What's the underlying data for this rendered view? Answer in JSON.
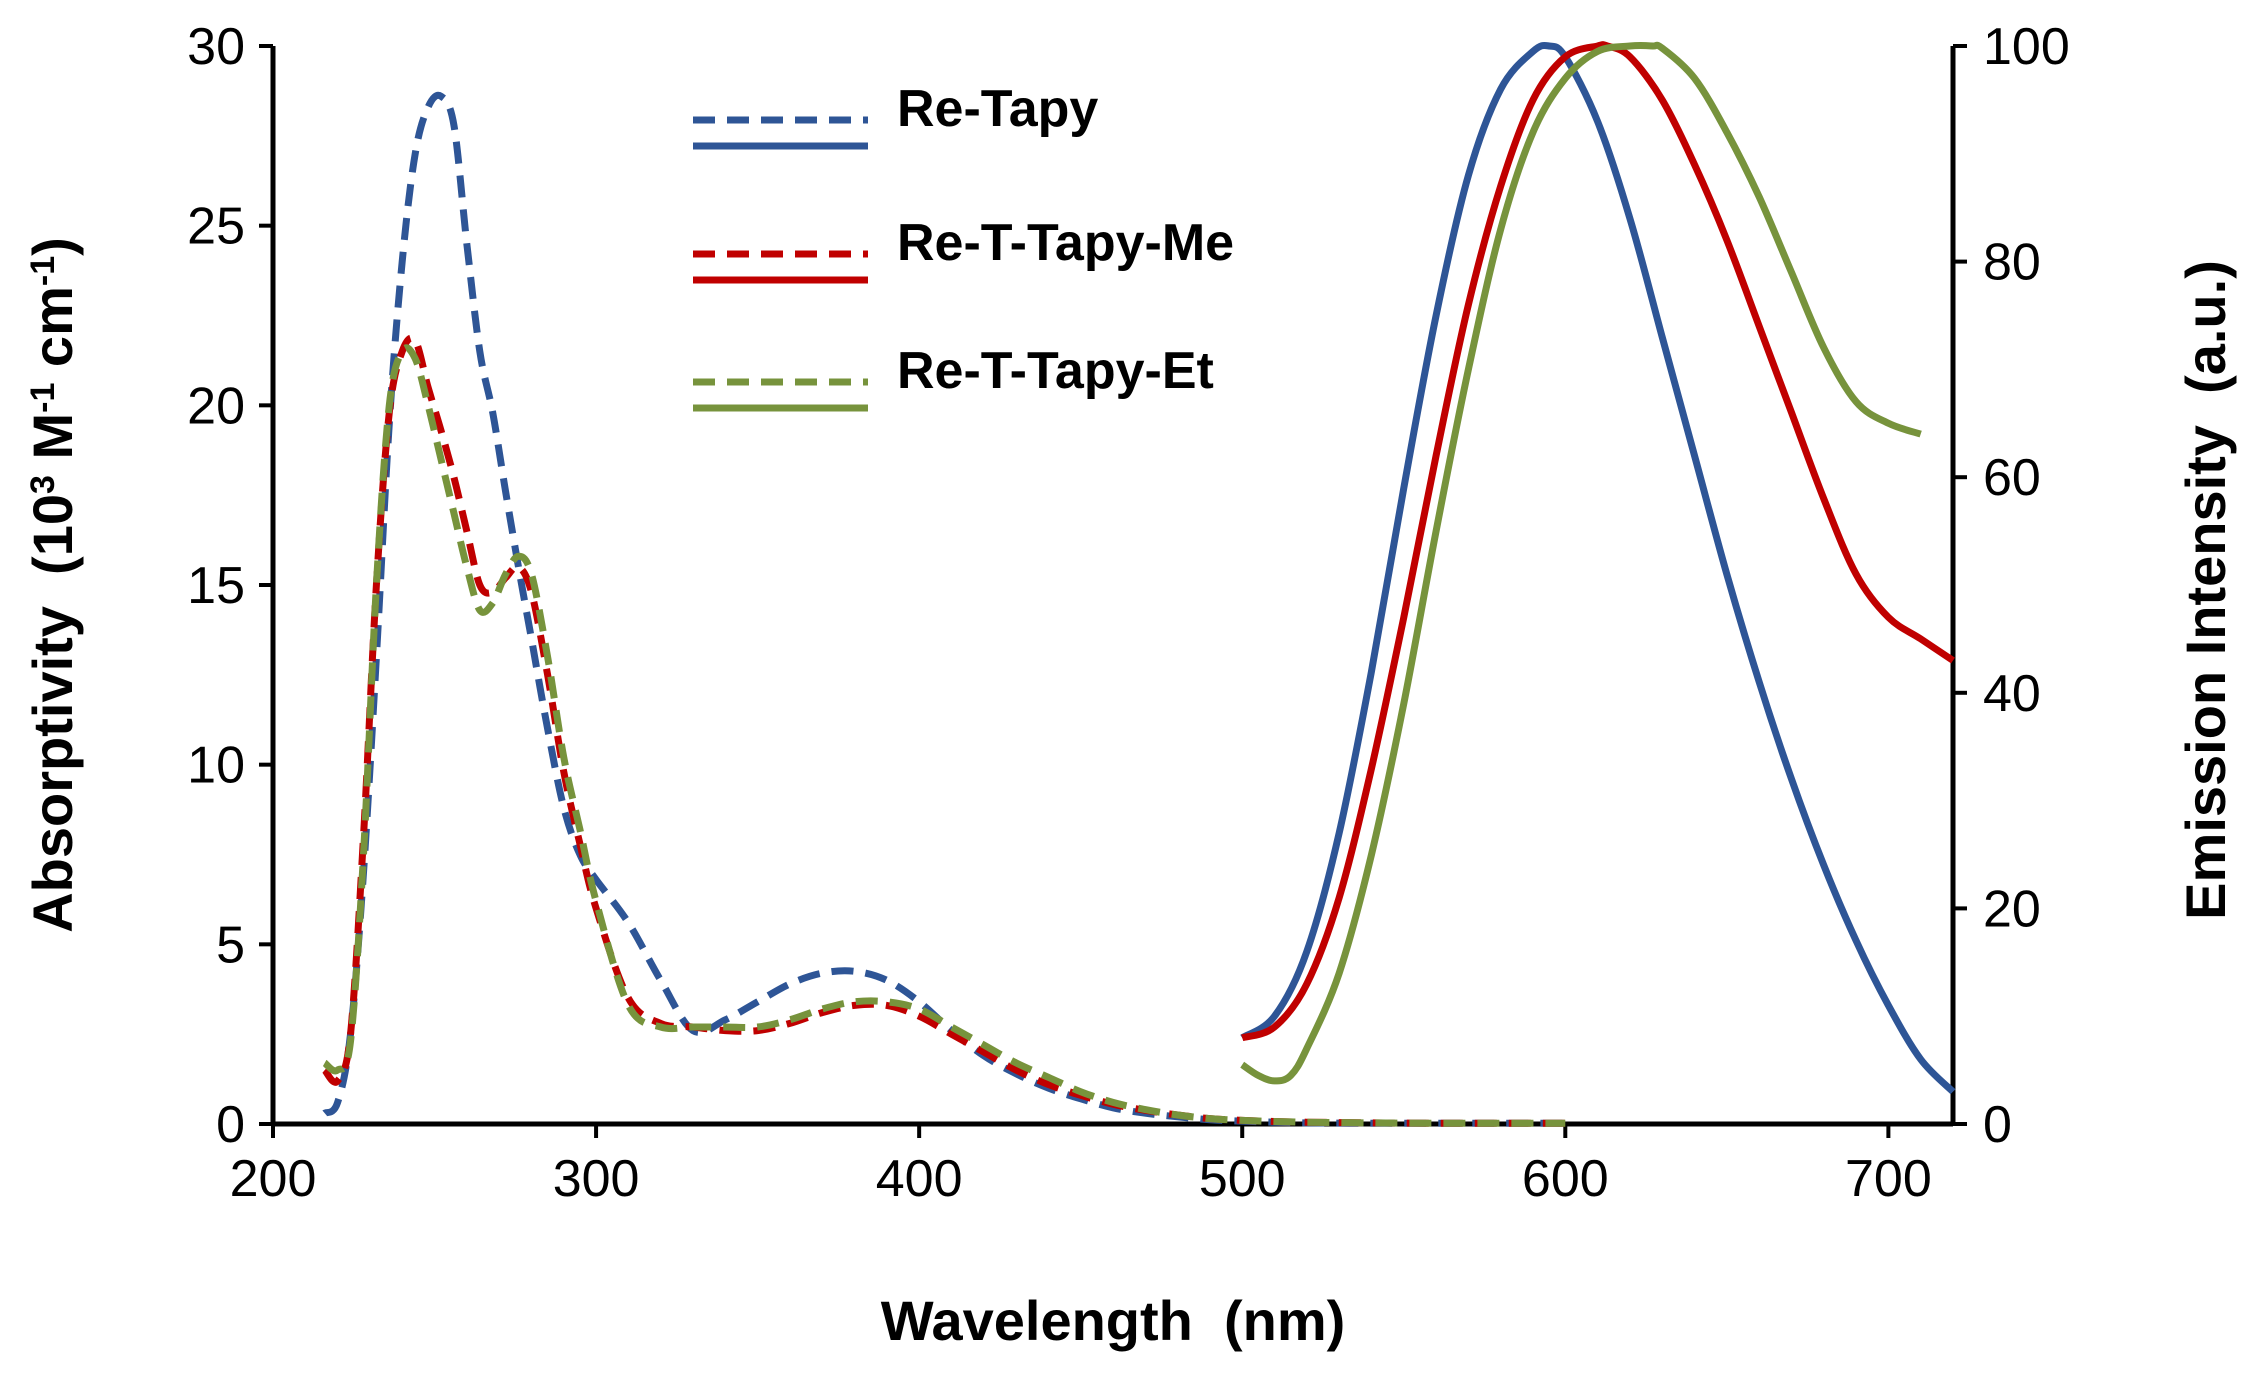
{
  "chart_data": {
    "type": "line",
    "title": "",
    "xlabel": "Wavelength  (nm)",
    "ylabel_left": {
      "pre": "Absorptivity  (10",
      "sup1": "3",
      "mid": " M",
      "sup2": "-1",
      "mid2": " cm",
      "sup3": "-1",
      "post": ")"
    },
    "ylabel_right": "Emission Intensity  (a.u.)",
    "xlim": [
      200,
      720
    ],
    "ylim_left": [
      0,
      30
    ],
    "ylim_right": [
      0,
      100
    ],
    "x_ticks": [
      200,
      300,
      400,
      500,
      600,
      700
    ],
    "y_left_ticks": [
      0,
      5,
      10,
      15,
      20,
      25,
      30
    ],
    "y_right_ticks": [
      0,
      20,
      40,
      60,
      80,
      100
    ],
    "grid": false,
    "legend_position": "top-center",
    "series": [
      {
        "name": "Re-Tapy",
        "color": "#2e5596",
        "absorption": {
          "axis": "left",
          "style": "dashed",
          "x": [
            216,
            220,
            224,
            228,
            232,
            236,
            240,
            244,
            248,
            252,
            256,
            260,
            264,
            268,
            272,
            276,
            280,
            285,
            290,
            295,
            300,
            310,
            320,
            330,
            340,
            350,
            360,
            370,
            380,
            390,
            400,
            410,
            420,
            430,
            440,
            450,
            460,
            470,
            480,
            490,
            500,
            510,
            520,
            540,
            560,
            580,
            600
          ],
          "y": [
            0.3,
            0.6,
            2.5,
            7,
            13,
            19.5,
            24,
            27,
            28.3,
            28.6,
            27.8,
            24.5,
            21.5,
            19.8,
            17.6,
            15.5,
            13.5,
            11,
            8.8,
            7.5,
            6.8,
            5.6,
            4,
            2.6,
            2.9,
            3.4,
            3.9,
            4.2,
            4.25,
            4.0,
            3.4,
            2.6,
            1.9,
            1.4,
            1.0,
            0.7,
            0.45,
            0.3,
            0.2,
            0.12,
            0.08,
            0.05,
            0.03,
            0.02,
            0.02,
            0.02,
            0.02
          ]
        },
        "emission": {
          "axis": "right",
          "style": "solid",
          "x": [
            500,
            510,
            520,
            530,
            540,
            550,
            560,
            570,
            580,
            590,
            595,
            600,
            610,
            620,
            630,
            640,
            650,
            660,
            670,
            680,
            690,
            700,
            710,
            720
          ],
          "y": [
            8,
            10,
            16,
            27,
            42,
            59,
            75,
            88,
            96,
            99.5,
            100,
            99,
            93,
            84,
            73,
            62,
            51,
            41,
            32,
            24,
            17,
            11,
            6,
            3
          ]
        }
      },
      {
        "name": "Re-T-Tapy-Me",
        "color": "#c00000",
        "absorption": {
          "axis": "left",
          "style": "dashed",
          "x": [
            216,
            220,
            224,
            228,
            232,
            236,
            240,
            244,
            248,
            252,
            256,
            260,
            264,
            268,
            272,
            276,
            280,
            285,
            290,
            295,
            300,
            310,
            320,
            330,
            340,
            350,
            360,
            370,
            380,
            390,
            400,
            410,
            420,
            430,
            440,
            450,
            460,
            470,
            480,
            490,
            500,
            510,
            520,
            540,
            560,
            580,
            600
          ],
          "y": [
            1.5,
            1.2,
            2.5,
            8,
            15,
            19.8,
            21.5,
            21.8,
            20.5,
            19.3,
            18,
            16.5,
            15,
            14.8,
            15.2,
            15.5,
            14.8,
            12.5,
            9.8,
            7.8,
            6.0,
            3.5,
            2.8,
            2.7,
            2.6,
            2.6,
            2.8,
            3.1,
            3.3,
            3.3,
            3.0,
            2.5,
            2.0,
            1.5,
            1.1,
            0.8,
            0.55,
            0.38,
            0.25,
            0.15,
            0.1,
            0.07,
            0.05,
            0.03,
            0.02,
            0.02,
            0.02
          ]
        },
        "emission": {
          "axis": "right",
          "style": "solid",
          "x": [
            500,
            510,
            520,
            530,
            540,
            550,
            560,
            570,
            580,
            590,
            600,
            610,
            613,
            620,
            630,
            640,
            650,
            660,
            670,
            680,
            690,
            700,
            710,
            720
          ],
          "y": [
            8,
            9,
            13,
            21,
            33,
            47,
            62,
            76,
            87,
            95,
            99,
            100,
            100,
            99,
            95,
            89,
            82,
            74,
            66,
            58,
            51,
            47,
            45,
            43
          ]
        }
      },
      {
        "name": "Re-T-Tapy-Et",
        "color": "#77933c",
        "absorption": {
          "axis": "left",
          "style": "dashed",
          "x": [
            216,
            220,
            224,
            228,
            232,
            236,
            240,
            244,
            248,
            252,
            256,
            260,
            264,
            268,
            272,
            276,
            280,
            285,
            290,
            295,
            300,
            310,
            320,
            330,
            340,
            350,
            360,
            370,
            380,
            390,
            400,
            410,
            420,
            430,
            440,
            450,
            460,
            470,
            480,
            490,
            500,
            510,
            520,
            540,
            560,
            580,
            600
          ],
          "y": [
            1.7,
            1.5,
            2.3,
            7.5,
            15,
            20,
            21.5,
            21.3,
            20,
            18.5,
            17,
            15.5,
            14.3,
            14.5,
            15.3,
            15.8,
            15.3,
            13,
            10.2,
            8.2,
            6.2,
            3.3,
            2.7,
            2.7,
            2.7,
            2.7,
            2.9,
            3.2,
            3.4,
            3.4,
            3.2,
            2.7,
            2.2,
            1.7,
            1.3,
            0.9,
            0.6,
            0.4,
            0.25,
            0.15,
            0.1,
            0.07,
            0.05,
            0.03,
            0.02,
            0.02,
            0.02
          ]
        },
        "emission": {
          "axis": "right",
          "style": "solid",
          "x": [
            500,
            505,
            510,
            515,
            520,
            530,
            540,
            550,
            560,
            570,
            580,
            590,
            600,
            610,
            620,
            627,
            630,
            640,
            650,
            660,
            670,
            680,
            690,
            700,
            710
          ],
          "y": [
            5.5,
            4.5,
            4,
            4.5,
            7,
            14,
            25,
            39,
            55,
            70,
            83,
            92,
            97,
            99.5,
            100,
            100,
            99.8,
            97,
            92,
            86,
            79,
            72,
            67,
            65,
            64
          ]
        }
      }
    ]
  }
}
